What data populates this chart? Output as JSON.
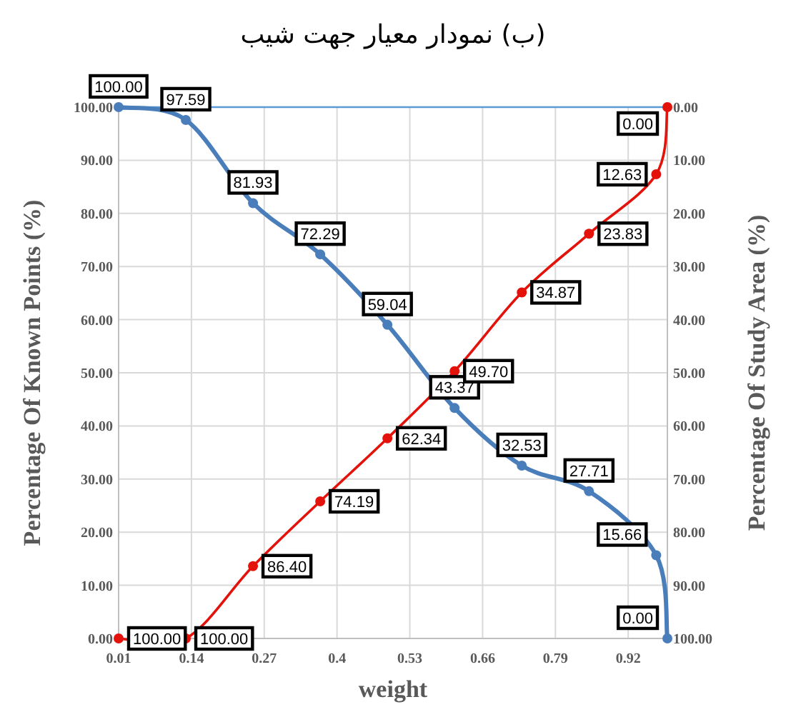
{
  "chart_data": {
    "type": "line",
    "title": "(ب) نمودار معیار جهت شیب",
    "xlabel": "weight",
    "ylabel": "Percentage Of Known Points (%)",
    "y2label": "Percentage Of Study Area (%)",
    "x": [
      0.01,
      0.13,
      0.25,
      0.37,
      0.49,
      0.61,
      0.73,
      0.85,
      0.97,
      0.99
    ],
    "xlim": [
      0.01,
      0.99
    ],
    "xticks": [
      0.01,
      0.14,
      0.27,
      0.4,
      0.53,
      0.66,
      0.79,
      0.92
    ],
    "ylim": [
      0,
      100
    ],
    "yticks": [
      {
        "value": 0,
        "label": "0.00"
      },
      {
        "value": 10,
        "label": "10.00"
      },
      {
        "value": 20,
        "label": "20.00"
      },
      {
        "value": 30,
        "label": "30.00"
      },
      {
        "value": 40,
        "label": "40.00"
      },
      {
        "value": 50,
        "label": "50.00"
      },
      {
        "value": 60,
        "label": "60.00"
      },
      {
        "value": 70,
        "label": "70.00"
      },
      {
        "value": 80,
        "label": "80.00"
      },
      {
        "value": 90,
        "label": "90.00"
      },
      {
        "value": 100,
        "label": "100.00"
      }
    ],
    "y2lim": [
      100,
      0
    ],
    "y2ticks": [
      {
        "value": 0,
        "label": "0.00"
      },
      {
        "value": 10,
        "label": "10.00"
      },
      {
        "value": 20,
        "label": "20.00"
      },
      {
        "value": 30,
        "label": "30.00"
      },
      {
        "value": 40,
        "label": "40.00"
      },
      {
        "value": 50,
        "label": "50.00"
      },
      {
        "value": 60,
        "label": "60.00"
      },
      {
        "value": 70,
        "label": "70.00"
      },
      {
        "value": 80,
        "label": "80.00"
      },
      {
        "value": 90,
        "label": "90.00"
      },
      {
        "value": 100,
        "label": "100.00"
      }
    ],
    "series": [
      {
        "color": "#4a7ebb",
        "values": [
          100,
          97.59,
          81.93,
          72.29,
          59.04,
          43.37,
          32.53,
          27.71,
          15.66,
          0
        ],
        "value_labels": [
          "100.00",
          "97.59",
          "81.93",
          "72.29",
          "59.04",
          "43.37",
          "32.53",
          "27.71",
          "15.66",
          "0.00"
        ]
      },
      {
        "color": "#e3120b",
        "axis": "y2",
        "values": [
          100,
          100,
          86.4,
          74.19,
          62.34,
          49.7,
          34.87,
          23.83,
          12.63,
          0
        ],
        "value_labels": [
          "100.00",
          "100.00",
          "86.40",
          "74.19",
          "62.34",
          "49.70",
          "34.87",
          "23.83",
          "12.63",
          "0.00"
        ]
      }
    ],
    "ref_lines": [
      {
        "axis": "y",
        "value": 100,
        "color": "#5b9bd5"
      }
    ],
    "grid": true,
    "marker": "circle",
    "line_style": "solid"
  }
}
